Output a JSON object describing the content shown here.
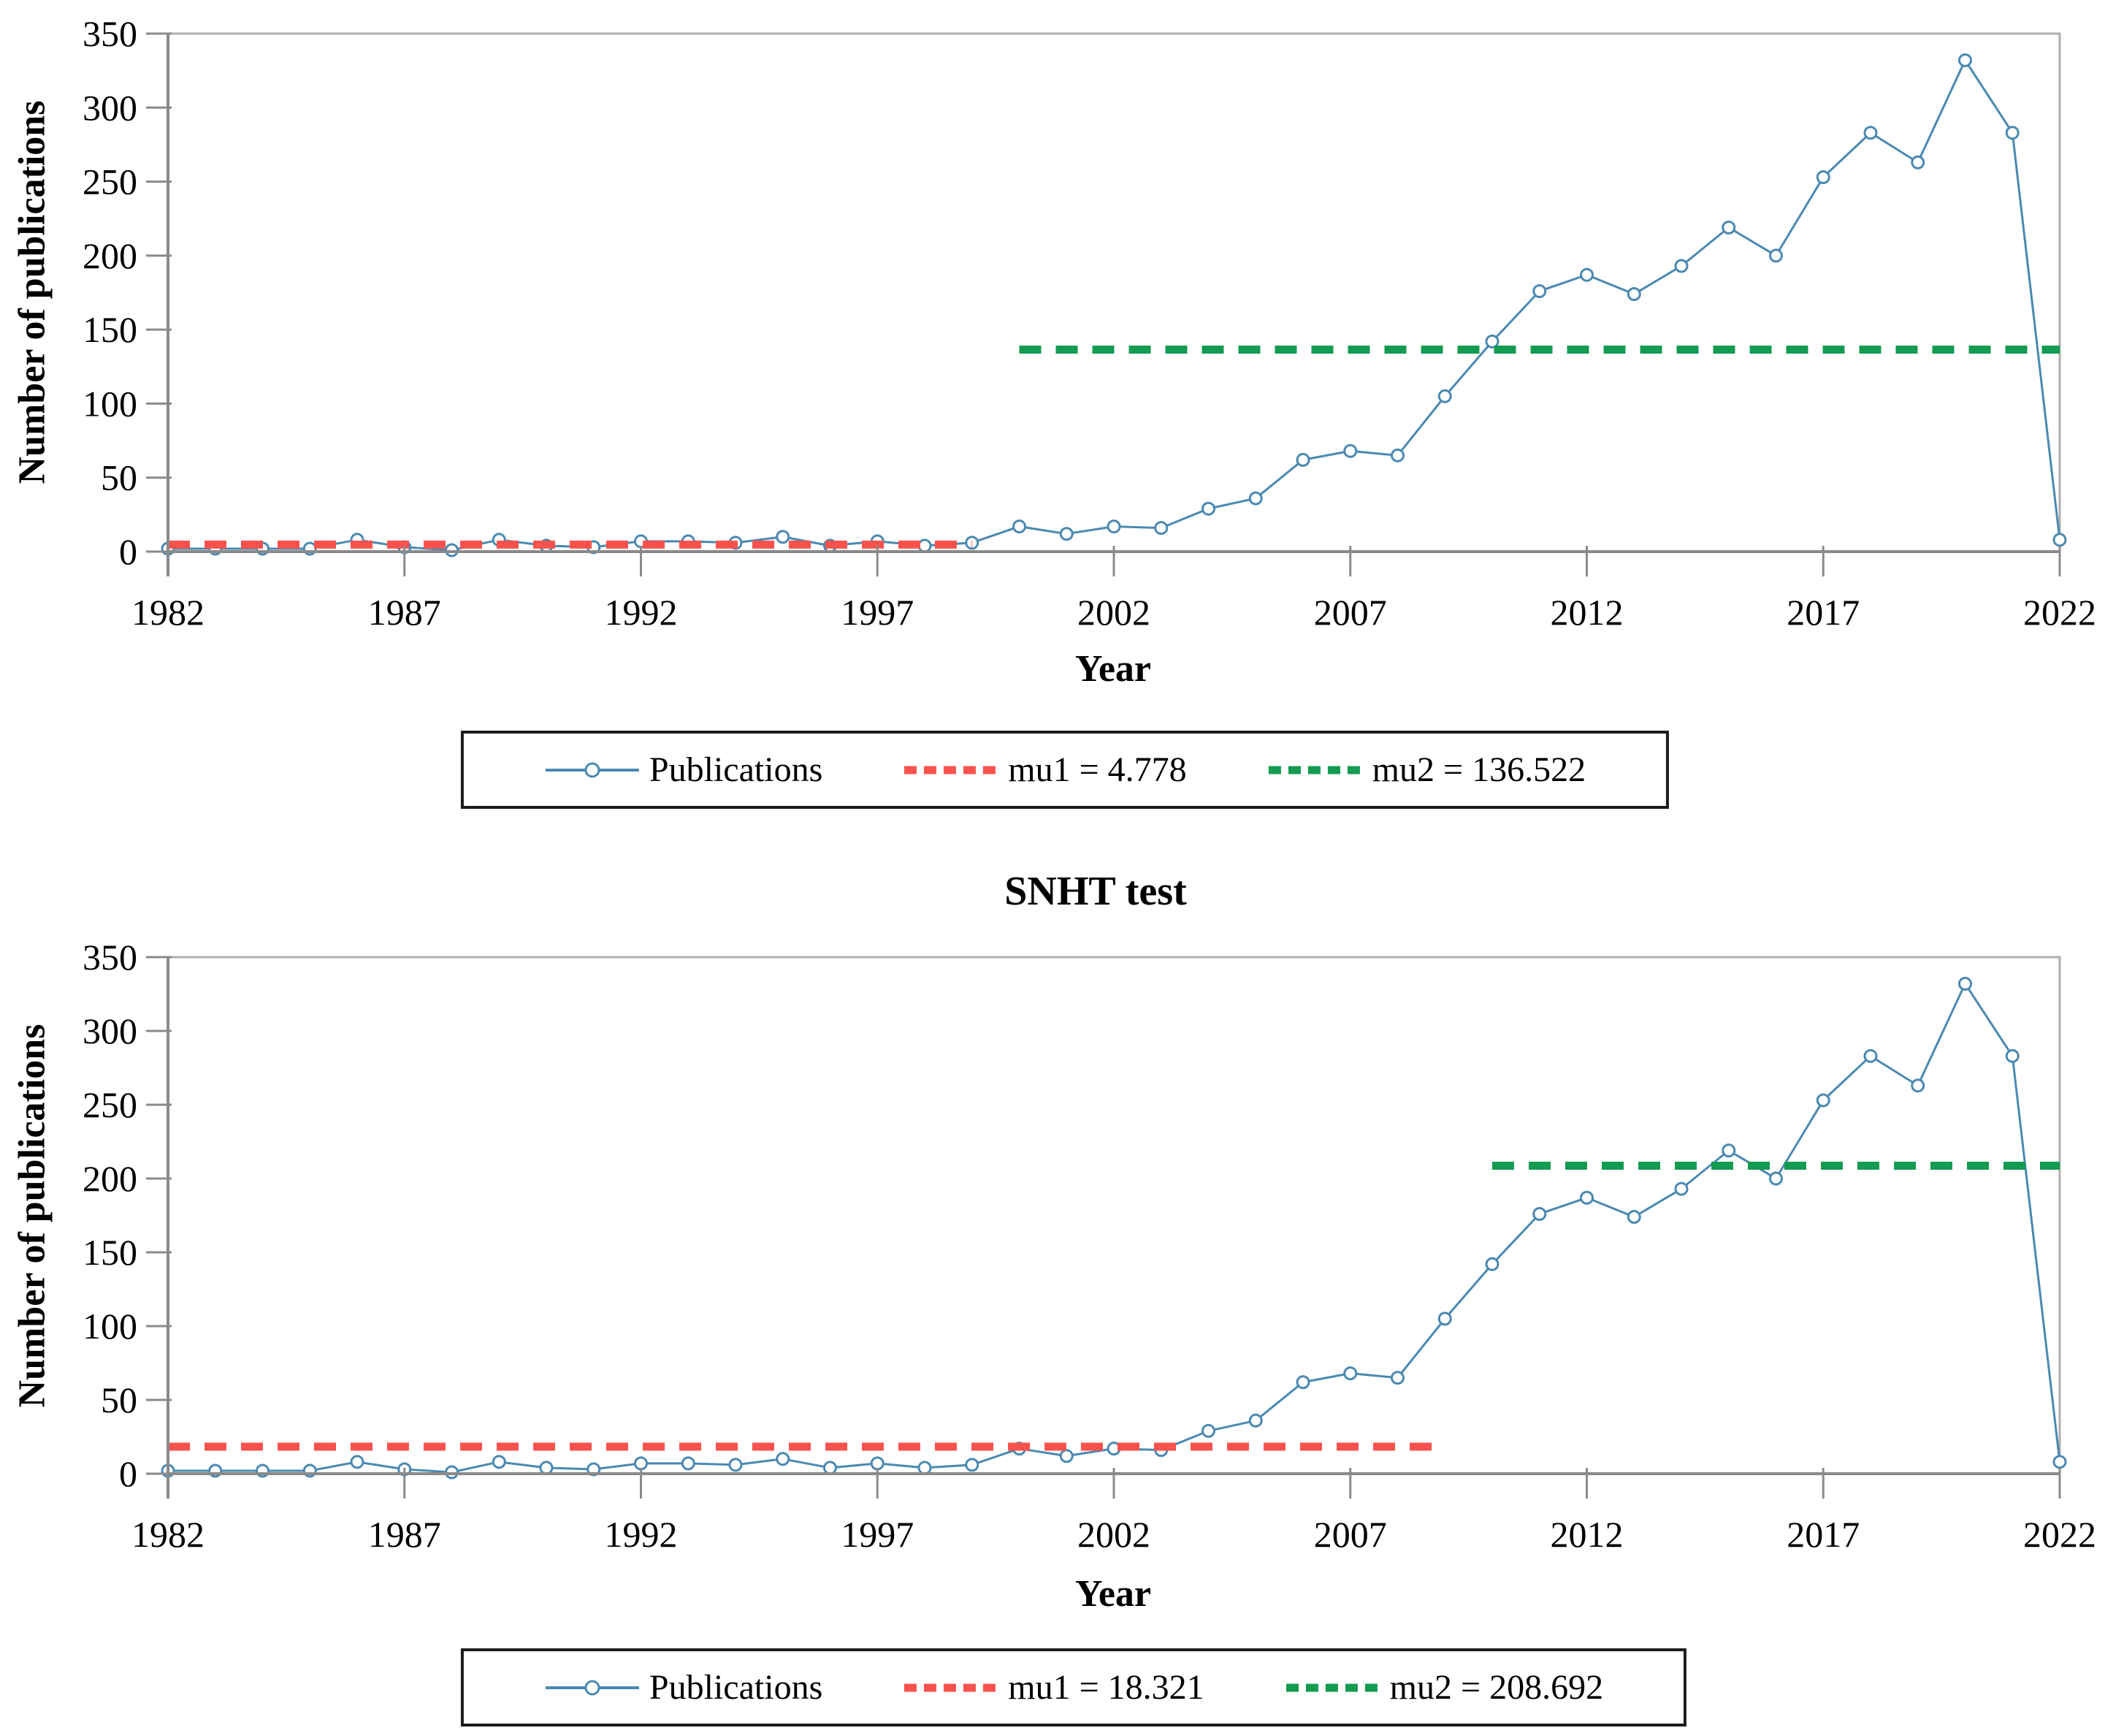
{
  "figure": {
    "ylabel": "Number of publications",
    "xlabel": "Year"
  },
  "colors": {
    "publications_line": "#4a89b2",
    "marker_fill": "#ffffff",
    "mu1_line": "#f8524e",
    "mu2_line": "#149b52",
    "plot_border": "#aeaeae",
    "axis_line": "#8a8a8a",
    "text": "#000000",
    "legend_border": "#1c1c1c",
    "background": "#ffffff"
  },
  "chart_data": [
    {
      "type": "line",
      "title": "",
      "xlabel": "Year",
      "ylabel": "Number of publications",
      "xlim": [
        1982,
        2022
      ],
      "ylim": [
        0,
        350
      ],
      "xticks": [
        1982,
        1987,
        1992,
        1997,
        2002,
        2007,
        2012,
        2017,
        2022
      ],
      "yticks": [
        0,
        50,
        100,
        150,
        200,
        250,
        300,
        350
      ],
      "grid": false,
      "legend_position": "bottom",
      "x": [
        1982,
        1983,
        1984,
        1985,
        1986,
        1987,
        1988,
        1989,
        1990,
        1991,
        1992,
        1993,
        1994,
        1995,
        1996,
        1997,
        1998,
        1999,
        2000,
        2001,
        2002,
        2003,
        2004,
        2005,
        2006,
        2007,
        2008,
        2009,
        2010,
        2011,
        2012,
        2013,
        2014,
        2015,
        2016,
        2017,
        2018,
        2019,
        2020,
        2021,
        2022
      ],
      "series": [
        {
          "name": "Publications",
          "type": "line",
          "marker": "open-circle",
          "color": "#4a89b2",
          "values": [
            2,
            2,
            2,
            2,
            8,
            3,
            1,
            8,
            4,
            3,
            7,
            7,
            6,
            10,
            4,
            7,
            4,
            6,
            17,
            12,
            17,
            16,
            29,
            36,
            62,
            68,
            65,
            105,
            142,
            176,
            187,
            174,
            193,
            219,
            200,
            253,
            283,
            263,
            332,
            283,
            8
          ]
        },
        {
          "name": "mu1 = 4.778",
          "type": "hline-dashed",
          "color": "#f8524e",
          "value": 4.778,
          "x_start": 1982,
          "x_end": 1999
        },
        {
          "name": "mu2 = 136.522",
          "type": "hline-dashed",
          "color": "#149b52",
          "value": 136.522,
          "x_start": 2000,
          "x_end": 2022
        }
      ]
    },
    {
      "type": "line",
      "title": "SNHT test",
      "xlabel": "Year",
      "ylabel": "Number of publications",
      "xlim": [
        1982,
        2022
      ],
      "ylim": [
        0,
        350
      ],
      "xticks": [
        1982,
        1987,
        1992,
        1997,
        2002,
        2007,
        2012,
        2017,
        2022
      ],
      "yticks": [
        0,
        50,
        100,
        150,
        200,
        250,
        300,
        350
      ],
      "grid": false,
      "legend_position": "bottom",
      "x": [
        1982,
        1983,
        1984,
        1985,
        1986,
        1987,
        1988,
        1989,
        1990,
        1991,
        1992,
        1993,
        1994,
        1995,
        1996,
        1997,
        1998,
        1999,
        2000,
        2001,
        2002,
        2003,
        2004,
        2005,
        2006,
        2007,
        2008,
        2009,
        2010,
        2011,
        2012,
        2013,
        2014,
        2015,
        2016,
        2017,
        2018,
        2019,
        2020,
        2021,
        2022
      ],
      "series": [
        {
          "name": "Publications",
          "type": "line",
          "marker": "open-circle",
          "color": "#4a89b2",
          "values": [
            2,
            2,
            2,
            2,
            8,
            3,
            1,
            8,
            4,
            3,
            7,
            7,
            6,
            10,
            4,
            7,
            4,
            6,
            17,
            12,
            17,
            16,
            29,
            36,
            62,
            68,
            65,
            105,
            142,
            176,
            187,
            174,
            193,
            219,
            200,
            253,
            283,
            263,
            332,
            283,
            8
          ]
        },
        {
          "name": "mu1 = 18.321",
          "type": "hline-dashed",
          "color": "#f8524e",
          "value": 18.321,
          "x_start": 1982,
          "x_end": 2009
        },
        {
          "name": "mu2 = 208.692",
          "type": "hline-dashed",
          "color": "#149b52",
          "value": 208.692,
          "x_start": 2010,
          "x_end": 2022
        }
      ]
    }
  ]
}
